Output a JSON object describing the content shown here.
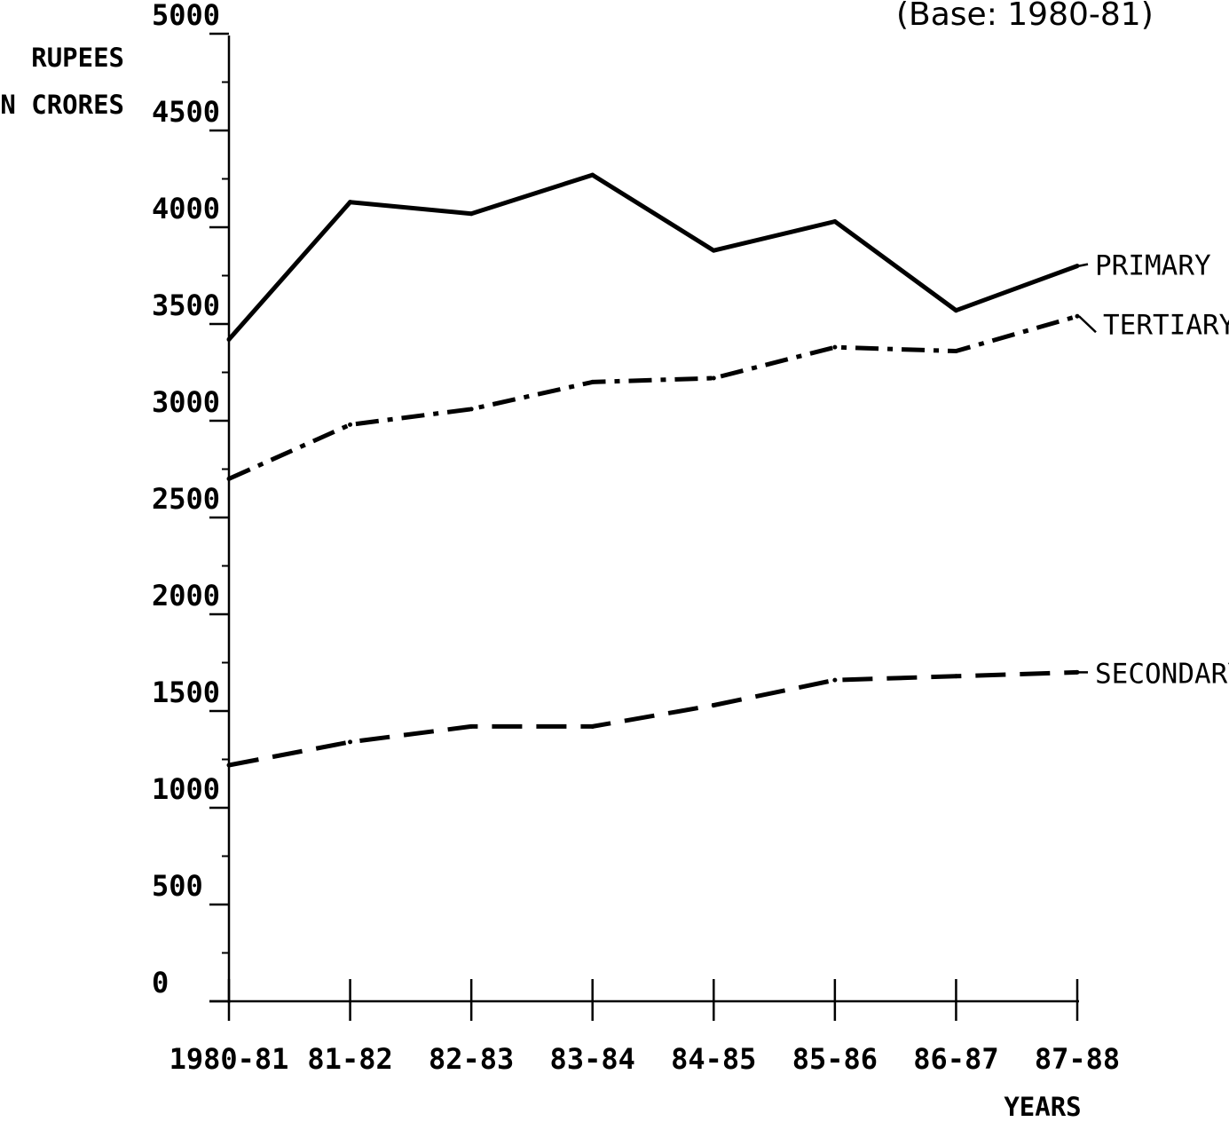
{
  "chart_data": {
    "type": "line",
    "title": "",
    "subtitle": "(Base: 1980-81)",
    "ylabel_line1": "RUPEES",
    "ylabel_line2": "IN CRORES",
    "xlabel": "YEARS",
    "ylim": [
      0,
      5000
    ],
    "yticks": [
      "0",
      "500",
      "1000",
      "1500",
      "2000",
      "2500",
      "3000",
      "3500",
      "4000",
      "4500",
      "5000"
    ],
    "categories": [
      "1980-81",
      "81-82",
      "82-83",
      "83-84",
      "84-85",
      "85-86",
      "86-87",
      "87-88"
    ],
    "series": [
      {
        "name": "PRIMARY",
        "style": "solid",
        "values": [
          3420,
          4130,
          4070,
          4270,
          3880,
          4030,
          3570,
          3800
        ]
      },
      {
        "name": "TERTIARY",
        "style": "dash-dot",
        "values": [
          2700,
          2980,
          3060,
          3200,
          3220,
          3380,
          3360,
          3540
        ]
      },
      {
        "name": "SECONDARY",
        "style": "dashed",
        "values": [
          1220,
          1340,
          1420,
          1420,
          1530,
          1660,
          1680,
          1700
        ]
      }
    ],
    "grid": false,
    "legend": "inline-right"
  }
}
